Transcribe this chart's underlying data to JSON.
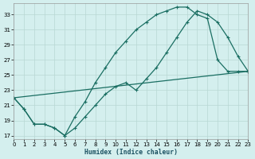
{
  "xlabel": "Humidex (Indice chaleur)",
  "bg_color": "#d4efee",
  "line_color": "#1a6e62",
  "grid_color": "#b8d8d4",
  "xlim": [
    0,
    23
  ],
  "ylim": [
    16.5,
    34.5
  ],
  "xticks": [
    0,
    1,
    2,
    3,
    4,
    5,
    6,
    7,
    8,
    9,
    10,
    11,
    12,
    13,
    14,
    15,
    16,
    17,
    18,
    19,
    20,
    21,
    22,
    23
  ],
  "yticks": [
    17,
    19,
    21,
    23,
    25,
    27,
    29,
    31,
    33
  ],
  "line_upper": {
    "x": [
      0,
      1,
      2,
      3,
      4,
      5,
      6,
      7,
      8,
      9,
      10,
      11,
      12,
      13,
      14,
      15,
      16,
      17,
      18,
      19,
      20,
      21,
      22,
      23
    ],
    "y": [
      22,
      20.5,
      18.5,
      18.5,
      18,
      17,
      19.5,
      21.5,
      24,
      26,
      28,
      29.5,
      31,
      32,
      33,
      33.5,
      34,
      34,
      33,
      32.5,
      27,
      25.5,
      25.5,
      25.5
    ]
  },
  "line_middle": {
    "x": [
      0,
      1,
      2,
      3,
      4,
      5,
      6,
      7,
      8,
      9,
      10,
      11,
      12,
      13,
      14,
      15,
      16,
      17,
      18,
      19,
      20,
      21,
      22,
      23
    ],
    "y": [
      22,
      20.5,
      18.5,
      18.5,
      18,
      17,
      18,
      19.5,
      21,
      22.5,
      23.5,
      24,
      23,
      24.5,
      26,
      28,
      30,
      32,
      33.5,
      33,
      32,
      30,
      27.5,
      25.5
    ]
  },
  "line_lower": {
    "x": [
      0,
      23
    ],
    "y": [
      22,
      25.5
    ]
  }
}
